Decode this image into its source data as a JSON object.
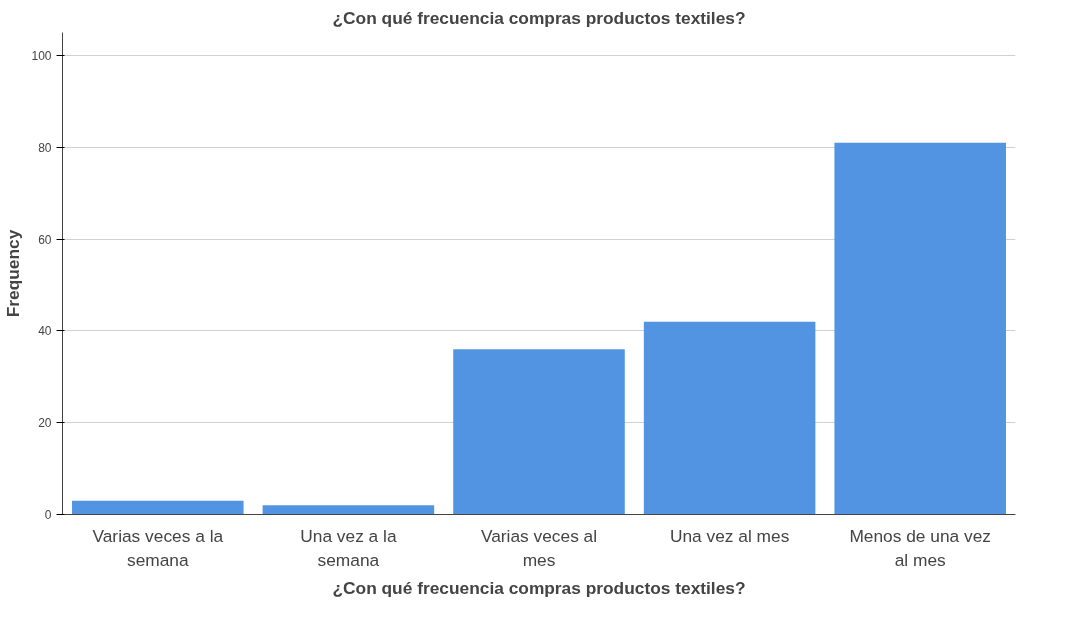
{
  "chart_data": {
    "type": "bar",
    "title": "¿Con qué frecuencia compras productos textiles?",
    "xlabel": "¿Con qué frecuencia compras productos textiles?",
    "ylabel": "Frequency",
    "categories": [
      "Varias veces a la semana",
      "Una vez a la semana",
      "Varias veces al mes",
      "Una vez al mes",
      "Menos de una vez al mes"
    ],
    "values": [
      3,
      2,
      36,
      42,
      81
    ],
    "color": "#5294e2",
    "ylim": [
      0,
      105
    ],
    "yticks": [
      0,
      20,
      40,
      60,
      80,
      100
    ],
    "grid": "y"
  }
}
